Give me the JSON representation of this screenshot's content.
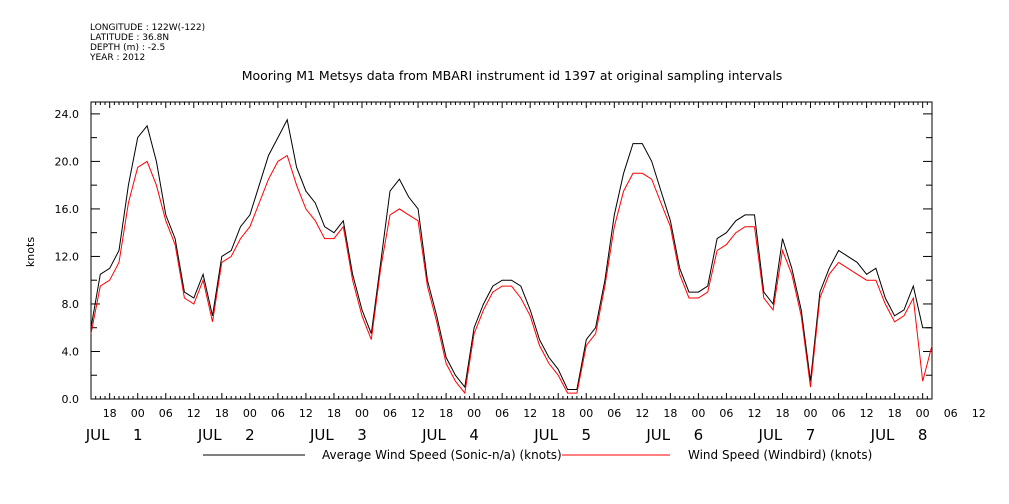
{
  "metadata": {
    "longitude": "LONGITUDE : 122W(-122)",
    "latitude": "LATITUDE : 36.8N",
    "depth": "DEPTH (m) : -2.5",
    "year": "YEAR : 2012"
  },
  "chart_data": {
    "type": "line",
    "title": "Mooring M1 Metsys data from MBARI instrument id 1397 at original sampling intervals",
    "ylabel": "knots",
    "ylim": [
      0,
      25
    ],
    "yticks": [
      "0.0",
      "4.0",
      "8.0",
      "12.0",
      "16.0",
      "20.0",
      "24.0"
    ],
    "xlim_hours": [
      14,
      194
    ],
    "xticks_hours": [
      "18",
      "00",
      "06",
      "12",
      "18",
      "00",
      "06",
      "12",
      "18",
      "00",
      "06",
      "12",
      "18",
      "00",
      "06",
      "12",
      "18",
      "00",
      "06",
      "12",
      "18",
      "00",
      "06",
      "12",
      "18",
      "00",
      "06",
      "12",
      "18",
      "00",
      "06",
      "12"
    ],
    "day_labels": [
      {
        "month": "JUL",
        "day": "1"
      },
      {
        "month": "JUL",
        "day": "2"
      },
      {
        "month": "JUL",
        "day": "3"
      },
      {
        "month": "JUL",
        "day": "4"
      },
      {
        "month": "JUL",
        "day": "5"
      },
      {
        "month": "JUL",
        "day": "6"
      },
      {
        "month": "JUL",
        "day": "7"
      },
      {
        "month": "JUL",
        "day": "8"
      }
    ],
    "grid": false,
    "legend_position": "bottom",
    "series": [
      {
        "name": "Average Wind Speed (Sonic-n/a) (knots)",
        "color": "#000000",
        "x_hours": [
          14,
          16,
          18,
          20,
          22,
          24,
          26,
          28,
          30,
          32,
          34,
          36,
          38,
          40,
          42,
          44,
          46,
          48,
          50,
          52,
          54,
          56,
          58,
          60,
          62,
          64,
          66,
          68,
          70,
          72,
          74,
          76,
          78,
          80,
          82,
          84,
          86,
          88,
          90,
          92,
          94,
          96,
          98,
          100,
          102,
          104,
          106,
          108,
          110,
          112,
          114,
          116,
          118,
          120,
          122,
          124,
          126,
          128,
          130,
          132,
          134,
          136,
          138,
          140,
          142,
          144,
          146,
          148,
          150,
          152,
          154,
          156,
          158,
          160,
          162,
          164,
          166,
          168,
          170,
          172,
          174,
          176,
          178,
          180,
          182,
          184,
          186,
          188,
          190,
          192,
          194
        ],
        "values": [
          6.0,
          10.5,
          11.0,
          12.5,
          18.0,
          22.0,
          23.0,
          20.0,
          15.5,
          13.5,
          9.0,
          8.5,
          10.5,
          7.0,
          12.0,
          12.5,
          14.5,
          15.5,
          18.0,
          20.5,
          22.0,
          23.5,
          19.5,
          17.5,
          16.5,
          14.5,
          14.0,
          15.0,
          10.5,
          7.5,
          5.5,
          11.5,
          17.5,
          18.5,
          17.0,
          16.0,
          10.0,
          7.0,
          3.5,
          2.0,
          1.0,
          6.0,
          8.0,
          9.5,
          10.0,
          10.0,
          9.5,
          7.5,
          5.0,
          3.5,
          2.5,
          0.8,
          0.8,
          5.0,
          6.0,
          10.0,
          15.5,
          19.0,
          21.5,
          21.5,
          20.0,
          17.5,
          15.0,
          11.0,
          9.0,
          9.0,
          9.5,
          13.5,
          14.0,
          15.0,
          15.5,
          15.5,
          9.0,
          8.0,
          13.5,
          11.0,
          7.5,
          1.5,
          9.0,
          11.0,
          12.5,
          12.0,
          11.5,
          10.5,
          11.0,
          8.5,
          7.0,
          7.5,
          9.5,
          6.0,
          6.0
        ]
      },
      {
        "name": "Wind Speed (Windbird) (knots)",
        "color": "#ff0000",
        "x_hours": [
          14,
          16,
          18,
          20,
          22,
          24,
          26,
          28,
          30,
          32,
          34,
          36,
          38,
          40,
          42,
          44,
          46,
          48,
          50,
          52,
          54,
          56,
          58,
          60,
          62,
          64,
          66,
          68,
          70,
          72,
          74,
          76,
          78,
          80,
          82,
          84,
          86,
          88,
          90,
          92,
          94,
          96,
          98,
          100,
          102,
          104,
          106,
          108,
          110,
          112,
          114,
          116,
          118,
          120,
          122,
          124,
          126,
          128,
          130,
          132,
          134,
          136,
          138,
          140,
          142,
          144,
          146,
          148,
          150,
          152,
          154,
          156,
          158,
          160,
          162,
          164,
          166,
          168,
          170,
          172,
          174,
          176,
          178,
          180,
          182,
          184,
          186,
          188,
          190,
          192,
          194
        ],
        "values": [
          5.5,
          9.5,
          10.0,
          11.5,
          16.5,
          19.5,
          20.0,
          18.0,
          15.0,
          13.0,
          8.5,
          8.0,
          10.0,
          6.5,
          11.5,
          12.0,
          13.5,
          14.5,
          16.5,
          18.5,
          20.0,
          20.5,
          18.0,
          16.0,
          15.0,
          13.5,
          13.5,
          14.5,
          10.0,
          7.0,
          5.0,
          11.0,
          15.5,
          16.0,
          15.5,
          15.0,
          9.5,
          6.5,
          3.0,
          1.5,
          0.5,
          5.5,
          7.5,
          9.0,
          9.5,
          9.5,
          8.5,
          7.0,
          4.5,
          3.0,
          2.0,
          0.5,
          0.5,
          4.5,
          5.5,
          9.5,
          14.5,
          17.5,
          19.0,
          19.0,
          18.5,
          16.5,
          14.5,
          10.5,
          8.5,
          8.5,
          9.0,
          12.5,
          13.0,
          14.0,
          14.5,
          14.5,
          8.5,
          7.5,
          12.5,
          10.5,
          7.0,
          1.0,
          8.5,
          10.5,
          11.5,
          11.0,
          10.5,
          10.0,
          10.0,
          8.0,
          6.5,
          7.0,
          8.5,
          1.5,
          4.5
        ]
      }
    ]
  }
}
